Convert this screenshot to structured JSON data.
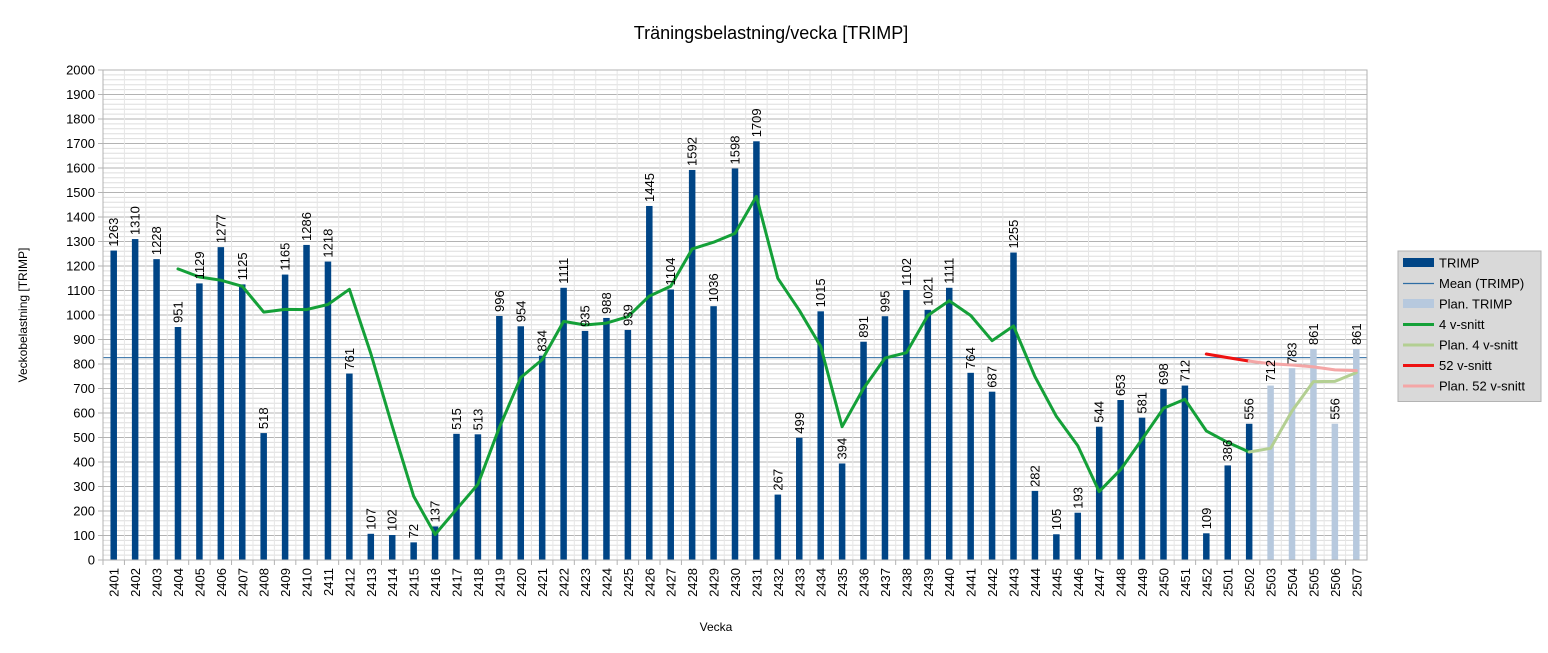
{
  "chart_data": {
    "type": "bar",
    "title": "Träningsbelastning/vecka [TRIMP]",
    "xlabel": "Vecka",
    "ylabel": "Veckobelastning [TRIMP]",
    "ylim": [
      0,
      2000
    ],
    "ytick_step": 100,
    "minor_grid_step": 20,
    "grid": true,
    "legend_position": "right",
    "categories": [
      "2401",
      "2402",
      "2403",
      "2404",
      "2405",
      "2406",
      "2407",
      "2408",
      "2409",
      "2410",
      "2411",
      "2412",
      "2413",
      "2414",
      "2415",
      "2416",
      "2417",
      "2418",
      "2419",
      "2420",
      "2421",
      "2422",
      "2423",
      "2424",
      "2425",
      "2426",
      "2427",
      "2428",
      "2429",
      "2430",
      "2431",
      "2432",
      "2433",
      "2434",
      "2435",
      "2436",
      "2437",
      "2438",
      "2439",
      "2440",
      "2441",
      "2442",
      "2443",
      "2444",
      "2445",
      "2446",
      "2447",
      "2448",
      "2449",
      "2450",
      "2451",
      "2452",
      "2501",
      "2502",
      "2503",
      "2504",
      "2505",
      "2506",
      "2507"
    ],
    "series": [
      {
        "name": "TRIMP",
        "kind": "bar",
        "color": "#004586",
        "values": [
          1263,
          1310,
          1228,
          951,
          1129,
          1277,
          1125,
          518,
          1165,
          1286,
          1218,
          761,
          107,
          102,
          72,
          137,
          515,
          513,
          996,
          954,
          834,
          1111,
          935,
          988,
          939,
          1445,
          1104,
          1592,
          1036,
          1598,
          1709,
          267,
          499,
          1015,
          394,
          891,
          995,
          1102,
          1021,
          1111,
          764,
          687,
          1255,
          282,
          105,
          193,
          544,
          653,
          581,
          698,
          712,
          109,
          386,
          556,
          null,
          null,
          null,
          null,
          null
        ]
      },
      {
        "name": "Mean (TRIMP)",
        "kind": "hline",
        "color": "#2e6da4",
        "value": 826
      },
      {
        "name": "Plan. TRIMP",
        "kind": "bar",
        "color": "#b7c9de",
        "values": [
          null,
          null,
          null,
          null,
          null,
          null,
          null,
          null,
          null,
          null,
          null,
          null,
          null,
          null,
          null,
          null,
          null,
          null,
          null,
          null,
          null,
          null,
          null,
          null,
          null,
          null,
          null,
          null,
          null,
          null,
          null,
          null,
          null,
          null,
          null,
          null,
          null,
          null,
          null,
          null,
          null,
          null,
          null,
          null,
          null,
          null,
          null,
          null,
          null,
          null,
          null,
          null,
          null,
          null,
          712,
          783,
          861,
          556,
          861
        ]
      },
      {
        "name": "4 v-snitt",
        "kind": "line",
        "color": "#14a038",
        "values": [
          null,
          null,
          null,
          1188,
          1155,
          1142,
          1117,
          1012,
          1023,
          1022,
          1043,
          1105,
          843,
          547,
          261,
          104,
          207,
          309,
          540,
          745,
          818,
          974,
          959,
          967,
          993,
          1077,
          1117,
          1270,
          1297,
          1333,
          1484,
          1150,
          1019,
          872,
          544,
          700,
          824,
          846,
          998,
          1058,
          998,
          895,
          955,
          749,
          586,
          466,
          279,
          369,
          493,
          619,
          656,
          527,
          480,
          441,
          null,
          null,
          null,
          null,
          null
        ]
      },
      {
        "name": "Plan. 4 v-snitt",
        "kind": "line",
        "color": "#b3cf92",
        "values": [
          null,
          null,
          null,
          null,
          null,
          null,
          null,
          null,
          null,
          null,
          null,
          null,
          null,
          null,
          null,
          null,
          null,
          null,
          null,
          null,
          null,
          null,
          null,
          null,
          null,
          null,
          null,
          null,
          null,
          null,
          null,
          null,
          null,
          null,
          null,
          null,
          null,
          null,
          null,
          null,
          null,
          null,
          null,
          null,
          null,
          null,
          null,
          null,
          null,
          null,
          null,
          null,
          null,
          441,
          456,
          608,
          728,
          729,
          765
        ]
      },
      {
        "name": "52 v-snitt",
        "kind": "line",
        "color": "#ee1111",
        "values": [
          null,
          null,
          null,
          null,
          null,
          null,
          null,
          null,
          null,
          null,
          null,
          null,
          null,
          null,
          null,
          null,
          null,
          null,
          null,
          null,
          null,
          null,
          null,
          null,
          null,
          null,
          null,
          null,
          null,
          null,
          null,
          null,
          null,
          null,
          null,
          null,
          null,
          null,
          null,
          null,
          null,
          null,
          null,
          null,
          null,
          null,
          null,
          null,
          null,
          null,
          null,
          841,
          826,
          812,
          null,
          null,
          null,
          null,
          null
        ]
      },
      {
        "name": "Plan. 52 v-snitt",
        "kind": "line",
        "color": "#f4a6a6",
        "values": [
          null,
          null,
          null,
          null,
          null,
          null,
          null,
          null,
          null,
          null,
          null,
          null,
          null,
          null,
          null,
          null,
          null,
          null,
          null,
          null,
          null,
          null,
          null,
          null,
          null,
          null,
          null,
          null,
          null,
          null,
          null,
          null,
          null,
          null,
          null,
          null,
          null,
          null,
          null,
          null,
          null,
          null,
          null,
          null,
          null,
          null,
          null,
          null,
          null,
          null,
          null,
          null,
          null,
          812,
          801,
          796,
          788,
          776,
          773
        ]
      }
    ]
  }
}
